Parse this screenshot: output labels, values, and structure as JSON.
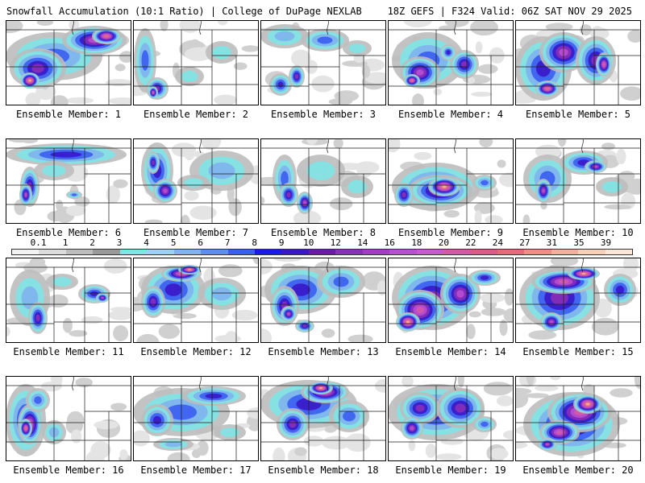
{
  "header": {
    "left": "Snowfall Accumulation (10:1 Ratio) | College of DuPage NEXLAB",
    "right": "18Z GEFS | F324 Valid: 06Z SAT NOV 29 2025"
  },
  "colorbar": {
    "labels": [
      "0.1",
      "1",
      "2",
      "3",
      "4",
      "5",
      "6",
      "7",
      "8",
      "9",
      "10",
      "12",
      "14",
      "16",
      "18",
      "20",
      "22",
      "24",
      "27",
      "31",
      "35",
      "39"
    ],
    "colors": [
      "#f2f2f2",
      "#dcdcdc",
      "#bdbdbd",
      "#9a9a9a",
      "#7fe6e6",
      "#9fd0f5",
      "#7fb4f0",
      "#5a8ff0",
      "#3a5ef0",
      "#1a1af0",
      "#3a18c8",
      "#6a1aa8",
      "#8a2fb8",
      "#a43cc6",
      "#b84fd0",
      "#c85ad0",
      "#d45aa8",
      "#dc5a88",
      "#e86a78",
      "#f08e84",
      "#f4b09c",
      "#f8d0b8",
      "#fbe6d8"
    ]
  },
  "panels": [
    {
      "label": "Ensemble Member: 1"
    },
    {
      "label": "Ensemble Member: 2"
    },
    {
      "label": "Ensemble Member: 3"
    },
    {
      "label": "Ensemble Member: 4"
    },
    {
      "label": "Ensemble Member: 5"
    },
    {
      "label": "Ensemble Member: 6"
    },
    {
      "label": "Ensemble Member: 7"
    },
    {
      "label": "Ensemble Member: 8"
    },
    {
      "label": "Ensemble Member: 9"
    },
    {
      "label": "Ensemble Member: 10"
    },
    {
      "label": "Ensemble Member: 11"
    },
    {
      "label": "Ensemble Member: 12"
    },
    {
      "label": "Ensemble Member: 13"
    },
    {
      "label": "Ensemble Member: 14"
    },
    {
      "label": "Ensemble Member: 15"
    },
    {
      "label": "Ensemble Member: 16"
    },
    {
      "label": "Ensemble Member: 17"
    },
    {
      "label": "Ensemble Member: 18"
    },
    {
      "label": "Ensemble Member: 19"
    },
    {
      "label": "Ensemble Member: 20"
    }
  ]
}
